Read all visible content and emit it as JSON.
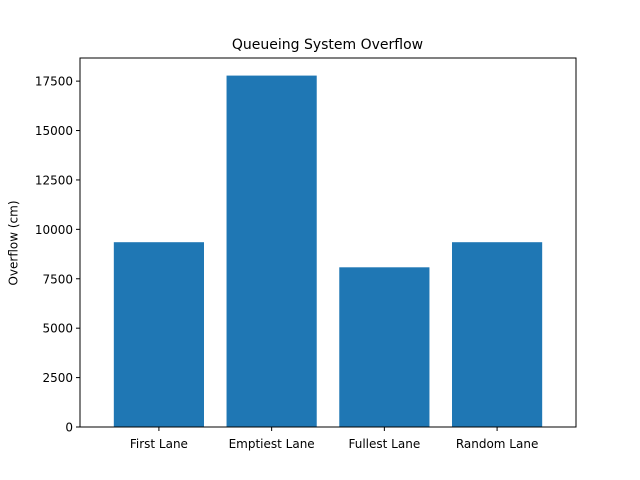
{
  "chart_data": {
    "type": "bar",
    "title": "Queueing System Overflow",
    "xlabel": "",
    "ylabel": "Overflow (cm)",
    "categories": [
      "First Lane",
      "Emptiest Lane",
      "Fullest Lane",
      "Random Lane"
    ],
    "values": [
      9350,
      17780,
      8080,
      9350
    ],
    "ylim": [
      0,
      18670
    ],
    "yticks": [
      0,
      2500,
      5000,
      7500,
      10000,
      12500,
      15000,
      17500
    ],
    "bar_color": "#1f77b4",
    "grid": false,
    "legend": "none"
  }
}
